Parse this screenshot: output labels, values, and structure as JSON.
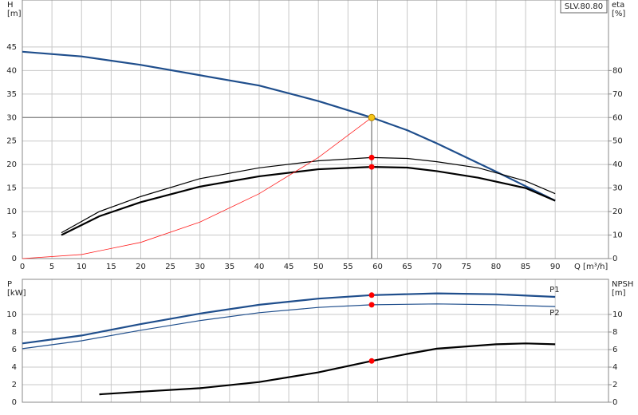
{
  "chart_data": [
    {
      "type": "line",
      "y_label": "H",
      "y_unit": "[m]",
      "y2_label": "eta",
      "y2_unit": "[%]",
      "x_label": "Q [m³/h]",
      "legend_box": "SLV.80.80",
      "xlim": [
        0,
        99
      ],
      "xticks": [
        0,
        5,
        10,
        15,
        20,
        25,
        30,
        35,
        40,
        45,
        50,
        55,
        60,
        65,
        70,
        75,
        80,
        85,
        90
      ],
      "ylim": [
        0,
        55
      ],
      "yticks": [
        0,
        5,
        10,
        15,
        20,
        25,
        30,
        35,
        40,
        45
      ],
      "y2lim": [
        0,
        110
      ],
      "y2ticks": [
        0,
        10,
        20,
        30,
        40,
        50,
        60,
        70,
        80
      ],
      "grid": true,
      "series": [
        {
          "color": "#1f4e8c",
          "width": 2.2,
          "x": [
            0,
            10,
            20,
            30,
            40,
            50,
            59,
            65,
            70,
            80,
            90
          ],
          "values": [
            44,
            43,
            41.2,
            39,
            36.8,
            33.5,
            30,
            27.3,
            24.5,
            18.5,
            12.3
          ]
        },
        {
          "color": "#000000",
          "width": 1.2,
          "axis": "y2",
          "x": [
            6.6,
            13,
            20,
            30,
            40,
            50,
            59,
            65,
            70,
            77,
            85,
            90
          ],
          "values": [
            11,
            20,
            26.4,
            34,
            38.6,
            41.6,
            43,
            42.6,
            41.2,
            38.6,
            33,
            27.6
          ]
        },
        {
          "color": "#000000",
          "width": 2.2,
          "axis": "y2",
          "x": [
            6.6,
            13,
            20,
            30,
            40,
            50,
            59,
            65,
            70,
            77,
            85,
            90
          ],
          "values": [
            10,
            18,
            24,
            30.6,
            35,
            38,
            39,
            38.7,
            37.2,
            34.4,
            30,
            24.6
          ]
        },
        {
          "color": "#ff2020",
          "width": 0.8,
          "x": [
            0,
            10,
            20,
            30,
            40,
            50,
            59
          ],
          "values": [
            0,
            0.86,
            3.45,
            7.76,
            13.8,
            21.5,
            30
          ]
        }
      ],
      "duty_point": {
        "x": 59,
        "y": 30,
        "color": "#f5c518"
      },
      "markers": [
        {
          "x": 59,
          "y": 43,
          "axis": "y2",
          "color": "#ff0000"
        },
        {
          "x": 59,
          "y": 39,
          "axis": "y2",
          "color": "#ff0000"
        }
      ]
    },
    {
      "type": "line",
      "y_label": "P",
      "y_unit": "[kW]",
      "y2_label": "NPSH",
      "y2_unit": "[m]",
      "xlim": [
        0,
        99
      ],
      "ylim": [
        0,
        14
      ],
      "yticks": [
        0,
        2,
        4,
        6,
        8,
        10
      ],
      "y2lim": [
        0,
        14
      ],
      "y2ticks": [
        0,
        2,
        4,
        6,
        8,
        10
      ],
      "grid": true,
      "series": [
        {
          "name": "P1",
          "color": "#1f4e8c",
          "width": 2.2,
          "x": [
            0,
            10,
            20,
            30,
            40,
            50,
            59,
            70,
            80,
            90
          ],
          "values": [
            6.7,
            7.6,
            8.9,
            10.1,
            11.1,
            11.8,
            12.2,
            12.4,
            12.3,
            12
          ]
        },
        {
          "name": "P2",
          "color": "#1f4e8c",
          "width": 1.2,
          "x": [
            0,
            10,
            20,
            30,
            40,
            50,
            59,
            70,
            80,
            90
          ],
          "values": [
            6.1,
            7,
            8.2,
            9.3,
            10.2,
            10.8,
            11.1,
            11.2,
            11.1,
            10.9
          ]
        },
        {
          "color": "#000000",
          "width": 2.2,
          "axis": "y2",
          "x": [
            13,
            20,
            30,
            40,
            50,
            59,
            65,
            70,
            80,
            85,
            90
          ],
          "values": [
            0.9,
            1.2,
            1.6,
            2.3,
            3.4,
            4.7,
            5.5,
            6.1,
            6.6,
            6.7,
            6.6
          ]
        }
      ],
      "markers": [
        {
          "x": 59,
          "y": 12.2,
          "color": "#ff0000"
        },
        {
          "x": 59,
          "y": 11.1,
          "color": "#ff0000"
        },
        {
          "x": 59,
          "y": 4.7,
          "axis": "y2",
          "color": "#ff0000"
        }
      ]
    }
  ]
}
